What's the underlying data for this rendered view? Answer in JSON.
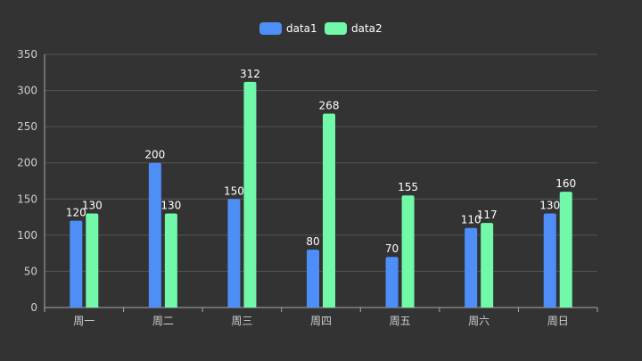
{
  "chart_data": {
    "type": "bar",
    "title": "",
    "xlabel": "",
    "ylabel": "",
    "categories": [
      "周一",
      "周二",
      "周三",
      "周四",
      "周五",
      "周六",
      "周日"
    ],
    "series": [
      {
        "name": "data1",
        "color": "#4e8ff7",
        "values": [
          120,
          200,
          150,
          80,
          70,
          110,
          130
        ]
      },
      {
        "name": "data2",
        "color": "#72f8a9",
        "values": [
          130,
          130,
          312,
          268,
          155,
          117,
          160
        ]
      }
    ],
    "ylim": [
      0,
      350
    ],
    "yticks": [
      0,
      50,
      100,
      150,
      200,
      250,
      300,
      350
    ],
    "grid": true,
    "legend_position": "top-center",
    "show_data_labels": true,
    "colors": {
      "background": "#333333",
      "grid": "#555555",
      "axis": "#aaaaaa",
      "tick_text": "#cfcfcf",
      "label_text": "#ffffff"
    }
  }
}
